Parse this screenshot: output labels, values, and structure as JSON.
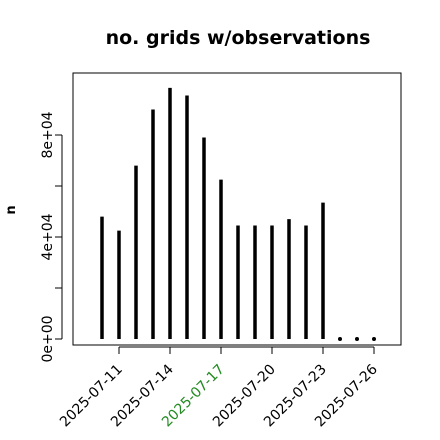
{
  "chart_data": {
    "type": "bar",
    "title": "no. grids w/observations",
    "xlabel": "",
    "ylabel": "n",
    "ylim": [
      0,
      100000
    ],
    "x_range": [
      "2025-07-10",
      "2025-07-26"
    ],
    "y_ticks": [
      {
        "value": 0,
        "label": "0e+00",
        "labeled": true
      },
      {
        "value": 20000,
        "label": "",
        "labeled": false
      },
      {
        "value": 40000,
        "label": "4e+04",
        "labeled": true
      },
      {
        "value": 60000,
        "label": "",
        "labeled": false
      },
      {
        "value": 80000,
        "label": "8e+04",
        "labeled": true
      }
    ],
    "x_ticks": [
      {
        "date": "2025-07-11",
        "label": "2025-07-11",
        "color": "#000000"
      },
      {
        "date": "2025-07-14",
        "label": "2025-07-14",
        "color": "#000000"
      },
      {
        "date": "2025-07-17",
        "label": "2025-07-17",
        "color": "#228B22"
      },
      {
        "date": "2025-07-20",
        "label": "2025-07-20",
        "color": "#000000"
      },
      {
        "date": "2025-07-23",
        "label": "2025-07-23",
        "color": "#000000"
      },
      {
        "date": "2025-07-26",
        "label": "2025-07-26",
        "color": "#000000"
      }
    ],
    "points": [
      {
        "x": "2025-07-10",
        "y": 48000
      },
      {
        "x": "2025-07-11",
        "y": 42500
      },
      {
        "x": "2025-07-12",
        "y": 68000
      },
      {
        "x": "2025-07-13",
        "y": 90000
      },
      {
        "x": "2025-07-14",
        "y": 98500
      },
      {
        "x": "2025-07-15",
        "y": 95500
      },
      {
        "x": "2025-07-16",
        "y": 79000
      },
      {
        "x": "2025-07-17",
        "y": 62500
      },
      {
        "x": "2025-07-18",
        "y": 44500
      },
      {
        "x": "2025-07-19",
        "y": 44500
      },
      {
        "x": "2025-07-20",
        "y": 44500
      },
      {
        "x": "2025-07-21",
        "y": 47000
      },
      {
        "x": "2025-07-22",
        "y": 44500
      },
      {
        "x": "2025-07-23",
        "y": 53500
      },
      {
        "x": "2025-07-24",
        "y": 0
      },
      {
        "x": "2025-07-25",
        "y": 0
      },
      {
        "x": "2025-07-26",
        "y": 0
      }
    ],
    "bar_color": "#000000",
    "grid": false
  }
}
